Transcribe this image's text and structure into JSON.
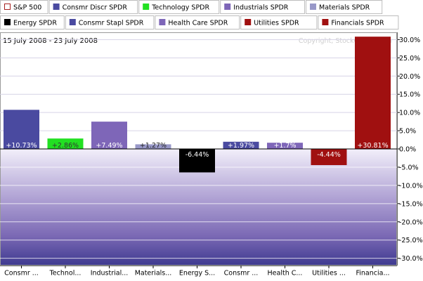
{
  "legend": [
    {
      "name": "S&P 500",
      "color": "#ffffff",
      "border": "#a52020"
    },
    {
      "name": "Consmr Discr SPDR",
      "color": "#4a4aa0"
    },
    {
      "name": "Technology SPDR",
      "color": "#22e022"
    },
    {
      "name": "Industrials SPDR",
      "color": "#7e66b8"
    },
    {
      "name": "Materials SPDR",
      "color": "#9898c8"
    },
    {
      "name": "Energy SPDR",
      "color": "#000000"
    },
    {
      "name": "Consmr Stapl SPDR",
      "color": "#4a4aa0"
    },
    {
      "name": "Health Care SPDR",
      "color": "#7e66b8"
    },
    {
      "name": "Utilities SPDR",
      "color": "#a01010"
    },
    {
      "name": "Financials SPDR",
      "color": "#a01010"
    }
  ],
  "date_range": "15 July 2008 - 23 July 2008",
  "copyright": "Copyright, StockCharts.com",
  "chart_data": {
    "type": "bar",
    "categories": [
      "Consmr ...",
      "Technol...",
      "Industrial...",
      "Materials...",
      "Energy S...",
      "Consmr ...",
      "Health C...",
      "Utilities ...",
      "Financia..."
    ],
    "values": [
      10.73,
      2.86,
      7.49,
      1.27,
      -6.44,
      1.97,
      1.7,
      -4.44,
      30.81
    ],
    "value_labels": [
      "+10.73%",
      "+2.86%",
      "+7.49%",
      "+1.27%",
      "-6.44%",
      "+1.97%",
      "+1.7%",
      "-4.44%",
      "+30.81%"
    ],
    "colors": [
      "#4a4aa0",
      "#22e022",
      "#7e66b8",
      "#9898c8",
      "#000000",
      "#4a4aa0",
      "#7e66b8",
      "#a01010",
      "#a01010"
    ],
    "yticks": [
      "30.0%",
      "25.0%",
      "20.0%",
      "15.0%",
      "10.0%",
      "5.0%",
      "0.0%",
      "-5.0%",
      "-10.0%",
      "-15.0%",
      "-20.0%",
      "-25.0%",
      "-30.0%"
    ],
    "ylim": [
      -32,
      32
    ],
    "grid": true
  }
}
